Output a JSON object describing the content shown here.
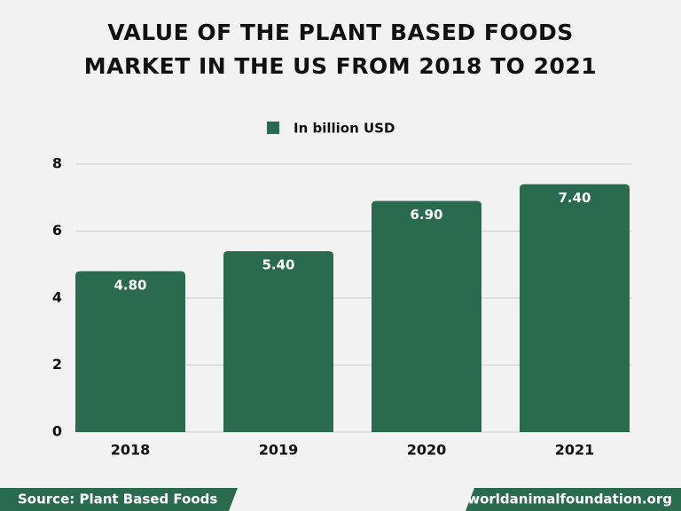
{
  "chart_data": {
    "type": "bar",
    "title": "VALUE OF THE PLANT BASED FOODS MARKET IN THE US FROM 2018 TO 2021",
    "categories": [
      "2018",
      "2019",
      "2020",
      "2021"
    ],
    "series": [
      {
        "name": "In billion USD",
        "color": "#2a6b4f",
        "values": [
          4.8,
          5.4,
          6.9,
          7.4
        ],
        "value_labels": [
          "4.80",
          "5.40",
          "6.90",
          "7.40"
        ]
      }
    ],
    "ylim": [
      0,
      8
    ],
    "yticks": [
      0,
      2,
      4,
      6,
      8
    ],
    "grid": true,
    "source": "Source: Plant Based Foods",
    "credit": "worldanimalfoundation.org"
  }
}
